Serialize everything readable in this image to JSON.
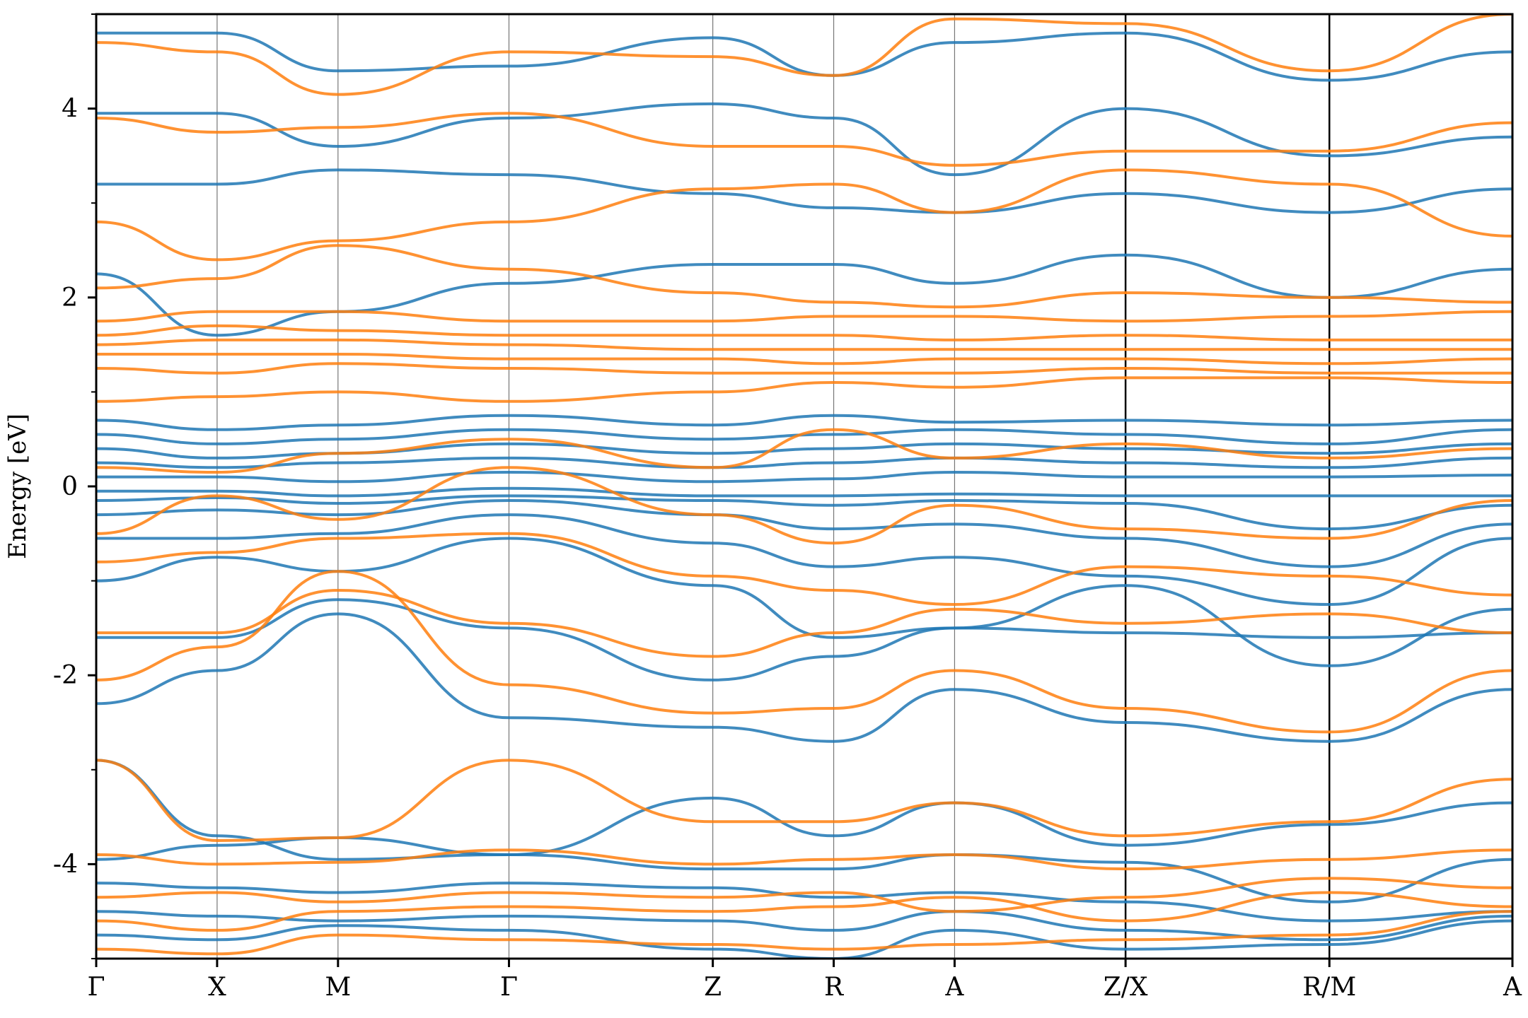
{
  "chart_data": {
    "type": "line",
    "title": "",
    "xlabel": "",
    "ylabel": "Energy [eV]",
    "ylim": [
      -5,
      5
    ],
    "y_ticks": [
      -4,
      -2,
      0,
      2,
      4
    ],
    "y_tick_labels": [
      "-4",
      "-2",
      "0",
      "2",
      "4"
    ],
    "y_minor_ticks": [
      -5,
      -3,
      -1,
      1,
      3,
      5
    ],
    "x_ticks": [
      {
        "label": "Γ",
        "pos": 0.0
      },
      {
        "label": "X",
        "pos": 0.5
      },
      {
        "label": "M",
        "pos": 1.0
      },
      {
        "label": "Γ",
        "pos": 1.707
      },
      {
        "label": "Z",
        "pos": 2.55
      },
      {
        "label": "R",
        "pos": 3.05
      },
      {
        "label": "A",
        "pos": 3.55
      },
      {
        "label": "Z/X",
        "pos": 4.257
      },
      {
        "label": "R/M",
        "pos": 5.1
      },
      {
        "label": "A",
        "pos": 5.857
      }
    ],
    "xlim": [
      0,
      5.857
    ],
    "breaks": [
      4.257,
      5.1
    ],
    "grid": false,
    "legend": "none",
    "series": [
      {
        "color": "#1f77b4",
        "bands": [
          [
            -4.75,
            -4.8,
            -4.65,
            -4.7,
            -4.9,
            -5.0,
            -4.7,
            -4.9,
            -4.85,
            -4.6
          ],
          [
            -4.5,
            -4.55,
            -4.6,
            -4.55,
            -4.6,
            -4.7,
            -4.5,
            -4.7,
            -4.8,
            -4.55
          ],
          [
            -4.2,
            -4.25,
            -4.3,
            -4.2,
            -4.25,
            -4.35,
            -4.3,
            -4.4,
            -4.6,
            -4.5
          ],
          [
            -3.95,
            -3.8,
            -3.72,
            -3.9,
            -4.05,
            -4.05,
            -3.9,
            -3.98,
            -4.4,
            -3.95
          ],
          [
            -2.9,
            -3.7,
            -3.95,
            -3.9,
            -3.3,
            -3.7,
            -3.35,
            -3.8,
            -3.58,
            -3.35
          ],
          [
            -2.3,
            -1.95,
            -1.35,
            -2.45,
            -2.55,
            -2.7,
            -2.15,
            -2.5,
            -2.7,
            -2.15
          ],
          [
            -1.6,
            -1.6,
            -1.2,
            -1.5,
            -2.05,
            -1.8,
            -1.5,
            -1.55,
            -1.6,
            -1.55
          ],
          [
            -1.0,
            -0.75,
            -0.9,
            -0.55,
            -1.05,
            -1.6,
            -1.5,
            -1.05,
            -1.9,
            -1.3
          ],
          [
            -0.55,
            -0.55,
            -0.5,
            -0.3,
            -0.6,
            -0.85,
            -0.75,
            -0.95,
            -1.25,
            -0.55
          ],
          [
            -0.3,
            -0.25,
            -0.3,
            -0.15,
            -0.3,
            -0.45,
            -0.4,
            -0.55,
            -0.85,
            -0.4
          ],
          [
            -0.15,
            -0.12,
            -0.18,
            -0.1,
            -0.15,
            -0.2,
            -0.15,
            -0.18,
            -0.45,
            -0.2
          ],
          [
            -0.05,
            -0.05,
            -0.1,
            -0.02,
            -0.1,
            -0.1,
            -0.08,
            -0.1,
            -0.1,
            -0.1
          ],
          [
            0.1,
            0.1,
            0.05,
            0.15,
            0.05,
            0.08,
            0.15,
            0.1,
            0.1,
            0.12
          ],
          [
            0.25,
            0.2,
            0.25,
            0.3,
            0.2,
            0.25,
            0.3,
            0.25,
            0.2,
            0.3
          ],
          [
            0.4,
            0.3,
            0.35,
            0.45,
            0.35,
            0.4,
            0.45,
            0.4,
            0.35,
            0.45
          ],
          [
            0.55,
            0.45,
            0.5,
            0.6,
            0.5,
            0.55,
            0.6,
            0.55,
            0.45,
            0.6
          ],
          [
            0.7,
            0.6,
            0.65,
            0.75,
            0.65,
            0.75,
            0.68,
            0.7,
            0.65,
            0.7
          ],
          [
            2.25,
            1.6,
            1.85,
            2.15,
            2.35,
            2.35,
            2.15,
            2.45,
            2.0,
            2.3
          ],
          [
            3.2,
            3.2,
            3.35,
            3.3,
            3.1,
            2.95,
            2.9,
            3.1,
            2.9,
            3.15
          ],
          [
            3.95,
            3.95,
            3.6,
            3.9,
            4.05,
            3.9,
            3.3,
            4.0,
            3.5,
            3.7
          ],
          [
            4.8,
            4.8,
            4.4,
            4.45,
            4.75,
            4.35,
            4.7,
            4.8,
            4.3,
            4.6
          ]
        ]
      },
      {
        "color": "#ff7f0e",
        "bands": [
          [
            -4.9,
            -4.95,
            -4.75,
            -4.8,
            -4.85,
            -4.9,
            -4.85,
            -4.8,
            -4.75,
            -4.5
          ],
          [
            -4.6,
            -4.7,
            -4.5,
            -4.45,
            -4.5,
            -4.45,
            -4.35,
            -4.6,
            -4.3,
            -4.45
          ],
          [
            -4.35,
            -4.3,
            -4.4,
            -4.3,
            -4.35,
            -4.3,
            -4.5,
            -4.35,
            -4.15,
            -4.25
          ],
          [
            -3.9,
            -4.0,
            -3.98,
            -3.85,
            -4.0,
            -3.95,
            -3.9,
            -4.05,
            -3.95,
            -3.85
          ],
          [
            -2.9,
            -3.75,
            -3.72,
            -2.9,
            -3.55,
            -3.55,
            -3.35,
            -3.7,
            -3.55,
            -3.1
          ],
          [
            -2.05,
            -1.7,
            -0.9,
            -2.1,
            -2.4,
            -2.35,
            -1.95,
            -2.35,
            -2.6,
            -1.95
          ],
          [
            -1.55,
            -1.55,
            -1.1,
            -1.45,
            -1.8,
            -1.55,
            -1.3,
            -1.45,
            -1.35,
            -1.55
          ],
          [
            -0.8,
            -0.7,
            -0.55,
            -0.5,
            -0.95,
            -1.1,
            -1.25,
            -0.85,
            -0.95,
            -1.15
          ],
          [
            -0.5,
            -0.1,
            -0.35,
            0.2,
            -0.3,
            -0.6,
            -0.2,
            -0.45,
            -0.55,
            -0.15
          ],
          [
            0.2,
            0.15,
            0.35,
            0.5,
            0.2,
            0.6,
            0.3,
            0.45,
            0.3,
            0.4
          ],
          [
            0.9,
            0.95,
            1.0,
            0.9,
            1.0,
            1.1,
            1.05,
            1.15,
            1.15,
            1.1
          ],
          [
            1.25,
            1.2,
            1.3,
            1.25,
            1.2,
            1.2,
            1.2,
            1.25,
            1.2,
            1.2
          ],
          [
            1.4,
            1.4,
            1.4,
            1.35,
            1.35,
            1.3,
            1.35,
            1.35,
            1.3,
            1.35
          ],
          [
            1.5,
            1.55,
            1.55,
            1.5,
            1.45,
            1.45,
            1.45,
            1.45,
            1.45,
            1.45
          ],
          [
            1.6,
            1.7,
            1.65,
            1.6,
            1.6,
            1.6,
            1.55,
            1.6,
            1.55,
            1.55
          ],
          [
            1.75,
            1.85,
            1.85,
            1.75,
            1.75,
            1.8,
            1.8,
            1.75,
            1.8,
            1.85
          ],
          [
            2.1,
            2.2,
            2.55,
            2.3,
            2.05,
            1.95,
            1.9,
            2.05,
            2.0,
            1.95
          ],
          [
            2.8,
            2.4,
            2.6,
            2.8,
            3.15,
            3.2,
            2.9,
            3.35,
            3.2,
            2.65
          ],
          [
            3.9,
            3.75,
            3.8,
            3.95,
            3.6,
            3.6,
            3.4,
            3.55,
            3.55,
            3.85
          ],
          [
            4.7,
            4.6,
            4.15,
            4.6,
            4.55,
            4.35,
            4.95,
            4.9,
            4.4,
            5.0
          ]
        ]
      }
    ]
  }
}
